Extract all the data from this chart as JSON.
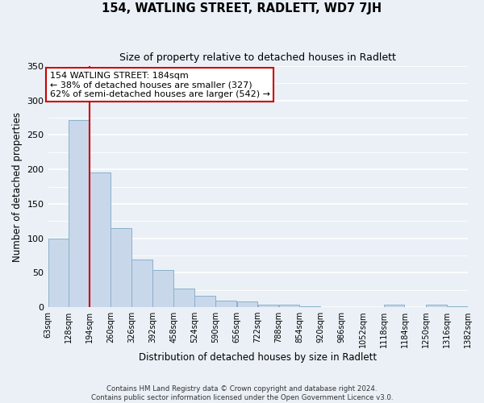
{
  "title": "154, WATLING STREET, RADLETT, WD7 7JH",
  "subtitle": "Size of property relative to detached houses in Radlett",
  "xlabel": "Distribution of detached houses by size in Radlett",
  "ylabel": "Number of detached properties",
  "bar_color": "#c8d8ea",
  "bar_edge_color": "#8ab0cc",
  "ylim": [
    0,
    350
  ],
  "yticks": [
    0,
    50,
    100,
    150,
    200,
    250,
    300,
    350
  ],
  "vline_color": "#cc0000",
  "annotation_title": "154 WATLING STREET: 184sqm",
  "annotation_line1": "← 38% of detached houses are smaller (327)",
  "annotation_line2": "62% of semi-detached houses are larger (542) →",
  "annotation_box_color": "#ffffff",
  "annotation_box_edge": "#cc0000",
  "footer_line1": "Contains HM Land Registry data © Crown copyright and database right 2024.",
  "footer_line2": "Contains public sector information licensed under the Open Government Licence v3.0.",
  "background_color": "#eaf0f6",
  "grid_color": "#ffffff",
  "bin_edges": [
    63,
    128,
    194,
    260,
    326,
    392,
    458,
    524,
    590,
    656,
    722,
    788,
    854,
    920,
    986,
    1052,
    1118,
    1184,
    1250,
    1316,
    1382
  ],
  "all_bin_heights": [
    100,
    272,
    195,
    115,
    69,
    54,
    27,
    16,
    10,
    8,
    4,
    4,
    1,
    0,
    0,
    0,
    4,
    0,
    4,
    1
  ],
  "bin_labels": [
    "63sqm",
    "128sqm",
    "194sqm",
    "260sqm",
    "326sqm",
    "392sqm",
    "458sqm",
    "524sqm",
    "590sqm",
    "656sqm",
    "722sqm",
    "788sqm",
    "854sqm",
    "920sqm",
    "986sqm",
    "1052sqm",
    "1118sqm",
    "1184sqm",
    "1250sqm",
    "1316sqm",
    "1382sqm"
  ]
}
